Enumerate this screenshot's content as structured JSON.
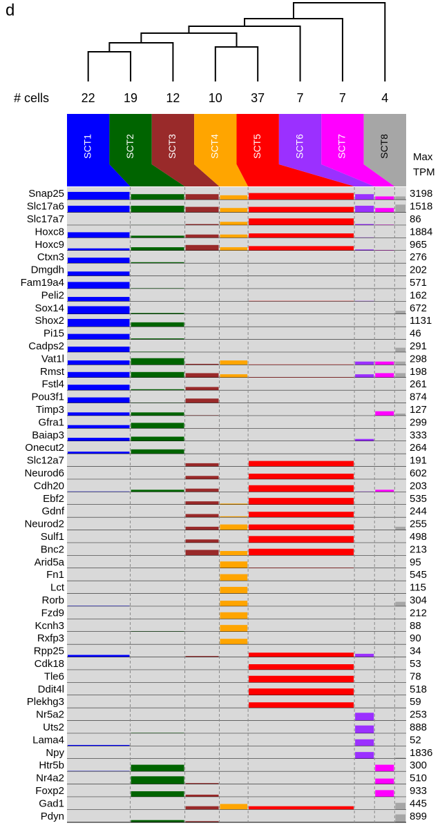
{
  "chart_data": {
    "type": "bar",
    "panel_label": "d",
    "cells_label": "# cells",
    "max_label": [
      "Max",
      "TPM"
    ],
    "ylim": [
      0,
      1
    ],
    "clusters": [
      {
        "name": "SCT1",
        "cells": 22,
        "color": "#0000ff"
      },
      {
        "name": "SCT2",
        "cells": 19,
        "color": "#006400"
      },
      {
        "name": "SCT3",
        "cells": 12,
        "color": "#992a2a"
      },
      {
        "name": "SCT4",
        "cells": 10,
        "color": "#ffa500"
      },
      {
        "name": "SCT5",
        "cells": 37,
        "color": "#ff0000"
      },
      {
        "name": "SCT6",
        "cells": 7,
        "color": "#9b30ff"
      },
      {
        "name": "SCT7",
        "cells": 7,
        "color": "#ff00ff"
      },
      {
        "name": "SCT8",
        "cells": 4,
        "color": "#a6a6a6"
      }
    ],
    "series": [
      {
        "name": "Snap25",
        "max_tpm": 3198,
        "values": [
          0.7,
          0.5,
          0.5,
          0.4,
          0.6,
          0.5,
          0.3,
          0.3
        ]
      },
      {
        "name": "Slc17a6",
        "max_tpm": 1518,
        "values": [
          0.6,
          0.6,
          0.5,
          0.4,
          0.5,
          0.6,
          0.4,
          0.7
        ]
      },
      {
        "name": "Slc17a7",
        "max_tpm": 86,
        "values": [
          0,
          0.02,
          0.1,
          0.3,
          0.6,
          0.1,
          0.05,
          0
        ]
      },
      {
        "name": "Hoxc8",
        "max_tpm": 1884,
        "values": [
          0.5,
          0.2,
          0.3,
          0.3,
          0.4,
          0.05,
          0,
          0
        ]
      },
      {
        "name": "Hoxc9",
        "max_tpm": 965,
        "values": [
          0.2,
          0.3,
          0.5,
          0.3,
          0.4,
          0.1,
          0.05,
          0
        ]
      },
      {
        "name": "Ctxn3",
        "max_tpm": 276,
        "values": [
          0.5,
          0.1,
          0,
          0,
          0,
          0,
          0,
          0
        ]
      },
      {
        "name": "Dmgdh",
        "max_tpm": 202,
        "values": [
          0.4,
          0,
          0,
          0,
          0,
          0,
          0,
          0
        ]
      },
      {
        "name": "Fam19a4",
        "max_tpm": 571,
        "values": [
          0.6,
          0.05,
          0,
          0,
          0,
          0,
          0,
          0
        ]
      },
      {
        "name": "Peli2",
        "max_tpm": 162,
        "values": [
          0.4,
          0,
          0,
          0,
          0.05,
          0.05,
          0,
          0
        ]
      },
      {
        "name": "Sox14",
        "max_tpm": 672,
        "values": [
          0.7,
          0.1,
          0,
          0,
          0,
          0,
          0,
          0.3
        ]
      },
      {
        "name": "Shox2",
        "max_tpm": 1131,
        "values": [
          0.7,
          0.4,
          0,
          0,
          0,
          0,
          0,
          0
        ]
      },
      {
        "name": "Pi15",
        "max_tpm": 46,
        "values": [
          0.5,
          0.1,
          0,
          0,
          0,
          0,
          0,
          0
        ]
      },
      {
        "name": "Cadps2",
        "max_tpm": 291,
        "values": [
          0.5,
          0.05,
          0,
          0,
          0,
          0,
          0,
          0.4
        ]
      },
      {
        "name": "Vat1l",
        "max_tpm": 298,
        "values": [
          0.4,
          0.6,
          0.1,
          0.4,
          0.05,
          0.3,
          0.3,
          0.3
        ]
      },
      {
        "name": "Rmst",
        "max_tpm": 198,
        "values": [
          0.5,
          0.5,
          0.4,
          0.3,
          0.05,
          0.3,
          0.4,
          0.4
        ]
      },
      {
        "name": "Fstl4",
        "max_tpm": 261,
        "values": [
          0.5,
          0.1,
          0.3,
          0,
          0,
          0,
          0,
          0
        ]
      },
      {
        "name": "Pou3f1",
        "max_tpm": 874,
        "values": [
          0.5,
          0.05,
          0.4,
          0,
          0,
          0,
          0,
          0
        ]
      },
      {
        "name": "Timp3",
        "max_tpm": 127,
        "values": [
          0.3,
          0.3,
          0.05,
          0,
          0,
          0,
          0.4,
          0.2
        ]
      },
      {
        "name": "Gfra1",
        "max_tpm": 299,
        "values": [
          0.3,
          0.5,
          0.02,
          0,
          0,
          0,
          0,
          0
        ]
      },
      {
        "name": "Baiap3",
        "max_tpm": 333,
        "values": [
          0.3,
          0.4,
          0,
          0,
          0,
          0.2,
          0,
          0
        ]
      },
      {
        "name": "Onecut2",
        "max_tpm": 264,
        "values": [
          0.2,
          0.4,
          0,
          0,
          0,
          0,
          0,
          0
        ]
      },
      {
        "name": "Slc12a7",
        "max_tpm": 191,
        "values": [
          0,
          0,
          0.3,
          0,
          0.5,
          0,
          0,
          0
        ]
      },
      {
        "name": "Neurod6",
        "max_tpm": 602,
        "values": [
          0,
          0,
          0.3,
          0,
          0.5,
          0,
          0,
          0
        ]
      },
      {
        "name": "Cdh20",
        "max_tpm": 203,
        "values": [
          0.05,
          0.2,
          0.3,
          0,
          0.6,
          0.05,
          0.2,
          0
        ]
      },
      {
        "name": "Ebf2",
        "max_tpm": 535,
        "values": [
          0,
          0,
          0.3,
          0.1,
          0.6,
          0,
          0,
          0
        ]
      },
      {
        "name": "Gdnf",
        "max_tpm": 244,
        "values": [
          0,
          0,
          0.3,
          0.1,
          0.5,
          0,
          0,
          0
        ]
      },
      {
        "name": "Neurod2",
        "max_tpm": 255,
        "values": [
          0,
          0,
          0.3,
          0.5,
          0.5,
          0,
          0,
          0.3
        ]
      },
      {
        "name": "Sulf1",
        "max_tpm": 498,
        "values": [
          0,
          0,
          0.3,
          0,
          0.6,
          0,
          0,
          0
        ]
      },
      {
        "name": "Bnc2",
        "max_tpm": 213,
        "values": [
          0,
          0,
          0.5,
          0.4,
          0.6,
          0,
          0,
          0
        ]
      },
      {
        "name": "Arid5a",
        "max_tpm": 95,
        "values": [
          0,
          0,
          0,
          0.6,
          0.05,
          0,
          0,
          0
        ]
      },
      {
        "name": "Fn1",
        "max_tpm": 545,
        "values": [
          0,
          0,
          0,
          0.6,
          0,
          0,
          0,
          0
        ]
      },
      {
        "name": "Lct",
        "max_tpm": 115,
        "values": [
          0,
          0,
          0,
          0.6,
          0,
          0,
          0,
          0
        ]
      },
      {
        "name": "Rorb",
        "max_tpm": 304,
        "values": [
          0.05,
          0,
          0,
          0.5,
          0,
          0,
          0,
          0.4
        ]
      },
      {
        "name": "Fzd9",
        "max_tpm": 212,
        "values": [
          0,
          0,
          0,
          0.6,
          0,
          0,
          0,
          0
        ]
      },
      {
        "name": "Kcnh3",
        "max_tpm": 88,
        "values": [
          0,
          0.05,
          0,
          0.6,
          0,
          0,
          0,
          0
        ]
      },
      {
        "name": "Rxfp3",
        "max_tpm": 90,
        "values": [
          0,
          0,
          0,
          0.5,
          0,
          0,
          0,
          0
        ]
      },
      {
        "name": "Rpp25",
        "max_tpm": 34,
        "values": [
          0.2,
          0,
          0.1,
          0,
          0.4,
          0.3,
          0,
          0
        ]
      },
      {
        "name": "Cdk18",
        "max_tpm": 53,
        "values": [
          0,
          0,
          0,
          0,
          0.5,
          0,
          0,
          0
        ]
      },
      {
        "name": "Tle6",
        "max_tpm": 78,
        "values": [
          0,
          0,
          0,
          0,
          0.6,
          0,
          0,
          0
        ]
      },
      {
        "name": "Ddit4l",
        "max_tpm": 518,
        "values": [
          0,
          0,
          0,
          0,
          0.6,
          0,
          0,
          0
        ]
      },
      {
        "name": "Plekhg3",
        "max_tpm": 59,
        "values": [
          0,
          0,
          0,
          0,
          0.5,
          0,
          0,
          0
        ]
      },
      {
        "name": "Nr5a2",
        "max_tpm": 253,
        "values": [
          0,
          0,
          0,
          0,
          0,
          0.7,
          0,
          0
        ]
      },
      {
        "name": "Uts2",
        "max_tpm": 888,
        "values": [
          0,
          0.05,
          0,
          0,
          0,
          0.7,
          0,
          0
        ]
      },
      {
        "name": "Lama4",
        "max_tpm": 52,
        "values": [
          0.1,
          0,
          0,
          0,
          0,
          0.6,
          0,
          0
        ]
      },
      {
        "name": "Npy",
        "max_tpm": 1836,
        "values": [
          0,
          0,
          0,
          0,
          0,
          0.6,
          0,
          0.1
        ]
      },
      {
        "name": "Htr5b",
        "max_tpm": 300,
        "values": [
          0.05,
          0.6,
          0,
          0,
          0,
          0,
          0.6,
          0
        ]
      },
      {
        "name": "Nr4a2",
        "max_tpm": 510,
        "values": [
          0,
          0.7,
          0.1,
          0,
          0,
          0,
          0.5,
          0
        ]
      },
      {
        "name": "Foxp2",
        "max_tpm": 933,
        "values": [
          0,
          0.5,
          0.2,
          0,
          0,
          0,
          0.6,
          0
        ]
      },
      {
        "name": "Gad1",
        "max_tpm": 445,
        "values": [
          0,
          0,
          0.3,
          0.5,
          0.3,
          0,
          0,
          0.6
        ]
      },
      {
        "name": "Pdyn",
        "max_tpm": 899,
        "values": [
          0,
          0.2,
          0.1,
          0,
          0,
          0,
          0,
          0.7
        ]
      }
    ]
  }
}
